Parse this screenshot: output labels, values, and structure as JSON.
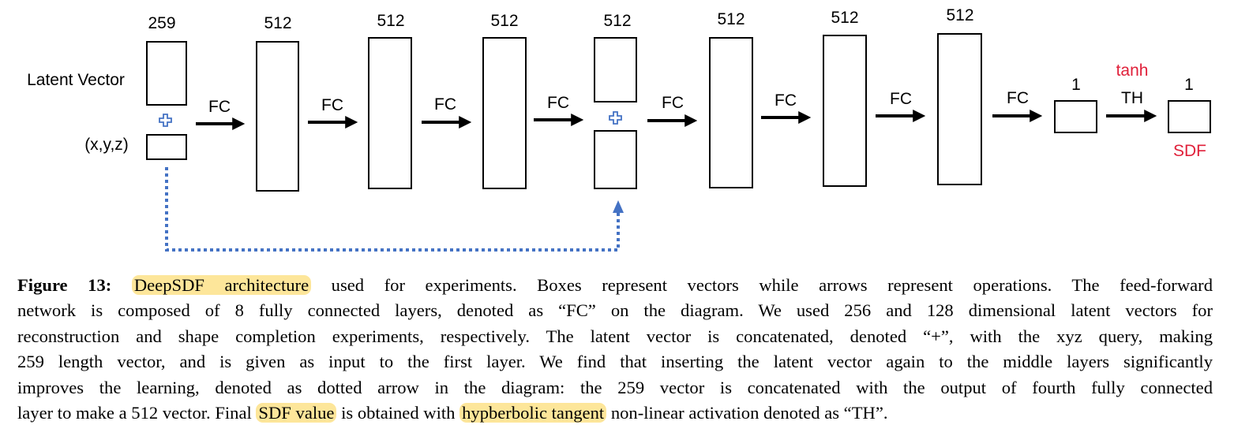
{
  "diagram": {
    "input": {
      "size_label": "259",
      "latent_label": "Latent Vector",
      "xyz_label": "(x,y,z)"
    },
    "layer_sizes": [
      "512",
      "512",
      "512",
      "512",
      "512",
      "512",
      "512"
    ],
    "fc_label": "FC",
    "output_pre": {
      "size_label": "1"
    },
    "activation": {
      "name": "tanh",
      "abbr": "TH"
    },
    "output": {
      "size_label": "1",
      "label": "SDF"
    },
    "colors": {
      "plus": "#4472c4",
      "skip_arrow": "#4472c4",
      "red_text": "#e0203a",
      "highlight": "#fde69a"
    }
  },
  "caption": {
    "figure_label": "Figure 13:",
    "hl_architecture": "DeepSDF architecture",
    "line1_rest": " used for experiments.  Boxes represent vectors while arrows represent operations.  The feed-forward",
    "line2": "network is composed of 8 fully connected layers, denoted as “FC” on the diagram.  We used 256 and 128 dimensional latent vectors for",
    "line3": "reconstruction and shape completion experiments, respectively. The latent vector is concatenated, denoted “+”, with the xyz query, making",
    "line4": "259 length vector, and is given as input to the first layer.  We find that inserting the latent vector again to the middle layers significantly",
    "line5": "improves the learning, denoted as dotted arrow in the diagram:  the 259 vector is concatenated with the output of fourth fully connected",
    "line6_a": "layer to make a 512 vector. Final ",
    "hl_sdf_value": "SDF value",
    "line6_b": " is obtained with ",
    "hl_tangent": "hypberbolic tangent",
    "line6_c": " non-linear activation denoted as “TH”."
  }
}
